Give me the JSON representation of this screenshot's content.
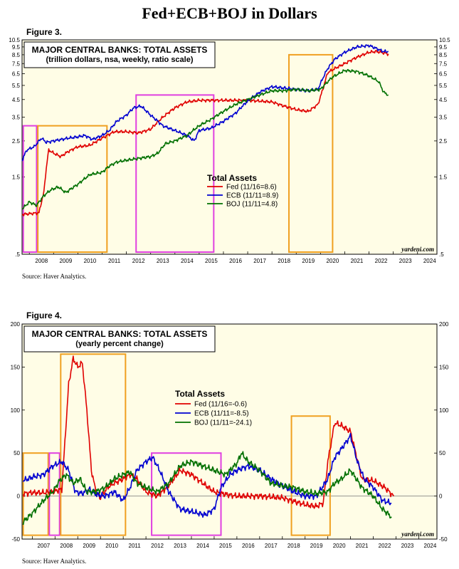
{
  "page": {
    "title": "Fed+ECB+BOJ in Dollars",
    "credit": "yardeni.com"
  },
  "chart_data": [
    {
      "figure_label": "Figure 3.",
      "type": "line",
      "title": "MAJOR CENTRAL BANKS: TOTAL ASSETS",
      "subtitle": "(trillion dollars, nsa, weekly, ratio scale)",
      "scale": "log",
      "ylim": [
        0.5,
        10.5
      ],
      "yticks": [
        ".5",
        "1.5",
        "2.5",
        "3.5",
        "4.5",
        "5.5",
        "6.5",
        "7.5",
        "8.5",
        "9.5",
        "10.5"
      ],
      "ytick_values": [
        0.5,
        1.5,
        2.5,
        3.5,
        4.5,
        5.5,
        6.5,
        7.5,
        8.5,
        9.5,
        10.5
      ],
      "xlim": [
        2007.7,
        2024.8
      ],
      "xticks": [
        "2008",
        "2009",
        "2010",
        "2011",
        "2012",
        "2013",
        "2014",
        "2015",
        "2016",
        "2017",
        "2018",
        "2019",
        "2020",
        "2021",
        "2022",
        "2023",
        "2024"
      ],
      "legend_title": "Total Assets",
      "source": "Source: Haver Analytics.",
      "highlight_boxes": [
        {
          "x0": 2007.75,
          "x1": 2008.3,
          "y0": 0.5,
          "y1": 3.1,
          "color": "#e040e0"
        },
        {
          "x0": 2008.35,
          "x1": 2011.2,
          "y0": 0.5,
          "y1": 3.1,
          "color": "#f0a020"
        },
        {
          "x0": 2012.4,
          "x1": 2015.6,
          "y0": 0.5,
          "y1": 4.8,
          "color": "#e040e0"
        },
        {
          "x0": 2018.7,
          "x1": 2020.5,
          "y0": 0.5,
          "y1": 8.5,
          "color": "#f0a020"
        }
      ],
      "series": [
        {
          "name": "Fed (11/16=8.6)",
          "color": "#e00000",
          "x": [
            2007.7,
            2008.4,
            2008.6,
            2008.8,
            2009.0,
            2009.3,
            2009.6,
            2010.0,
            2010.5,
            2011.0,
            2011.5,
            2012.0,
            2012.5,
            2013.0,
            2013.5,
            2014.0,
            2014.5,
            2015.0,
            2016.0,
            2017.0,
            2018.0,
            2018.5,
            2019.0,
            2019.5,
            2019.9,
            2020.1,
            2020.3,
            2020.6,
            2021.0,
            2021.5,
            2022.0,
            2022.3,
            2022.5,
            2022.8
          ],
          "y": [
            0.88,
            0.9,
            1.2,
            2.2,
            2.1,
            2.0,
            2.15,
            2.3,
            2.35,
            2.6,
            2.85,
            2.85,
            2.8,
            2.95,
            3.5,
            4.0,
            4.35,
            4.45,
            4.45,
            4.45,
            4.35,
            4.1,
            3.9,
            3.8,
            4.2,
            5.2,
            6.6,
            7.0,
            7.5,
            8.2,
            8.8,
            8.9,
            8.8,
            8.6
          ]
        },
        {
          "name": "ECB (11/11=8.9)",
          "color": "#0000d0",
          "x": [
            2007.7,
            2007.9,
            2008.2,
            2008.5,
            2008.7,
            2009.0,
            2009.3,
            2009.6,
            2010.0,
            2010.3,
            2010.6,
            2011.0,
            2011.3,
            2011.6,
            2012.0,
            2012.3,
            2012.6,
            2013.0,
            2013.5,
            2014.0,
            2014.5,
            2014.8,
            2015.0,
            2015.5,
            2016.0,
            2016.5,
            2017.0,
            2017.5,
            2018.0,
            2018.5,
            2019.0,
            2019.5,
            2019.9,
            2020.3,
            2020.6,
            2021.0,
            2021.5,
            2022.0,
            2022.3,
            2022.6,
            2022.8
          ],
          "y": [
            1.9,
            2.2,
            2.3,
            2.6,
            2.45,
            2.5,
            2.55,
            2.6,
            2.65,
            2.7,
            2.55,
            2.7,
            2.9,
            3.3,
            3.6,
            4.0,
            4.1,
            3.6,
            3.1,
            2.9,
            2.7,
            2.5,
            2.9,
            3.0,
            3.3,
            3.7,
            4.4,
            5.0,
            5.4,
            5.3,
            5.2,
            5.1,
            5.2,
            7.0,
            8.0,
            8.8,
            9.5,
            9.7,
            9.3,
            8.9,
            8.9
          ]
        },
        {
          "name": "BOJ (11/11=4.8)",
          "color": "#007000",
          "x": [
            2007.7,
            2008.0,
            2008.3,
            2008.6,
            2008.9,
            2009.2,
            2009.5,
            2010.0,
            2010.5,
            2011.0,
            2011.3,
            2011.6,
            2012.0,
            2012.5,
            2013.0,
            2013.3,
            2013.6,
            2014.0,
            2014.5,
            2015.0,
            2015.5,
            2016.0,
            2016.5,
            2017.0,
            2017.5,
            2018.0,
            2018.5,
            2019.0,
            2019.5,
            2020.0,
            2020.5,
            2021.0,
            2021.5,
            2022.0,
            2022.4,
            2022.6,
            2022.8
          ],
          "y": [
            0.95,
            1.05,
            1.0,
            1.15,
            1.25,
            1.3,
            1.2,
            1.35,
            1.55,
            1.6,
            1.75,
            1.85,
            1.9,
            1.95,
            2.0,
            2.1,
            2.4,
            2.5,
            2.7,
            3.1,
            3.4,
            3.8,
            4.2,
            4.5,
            4.8,
            5.1,
            5.1,
            5.2,
            5.1,
            5.2,
            6.2,
            6.8,
            6.7,
            6.3,
            5.8,
            5.0,
            4.8
          ]
        }
      ]
    },
    {
      "figure_label": "Figure 4.",
      "type": "line",
      "title": "MAJOR CENTRAL BANKS: TOTAL ASSETS",
      "subtitle": "(yearly percent change)",
      "scale": "linear",
      "ylim": [
        -50,
        200
      ],
      "yticks": [
        "-50",
        "0",
        "50",
        "100",
        "150",
        "200"
      ],
      "ytick_values": [
        -50,
        0,
        50,
        100,
        150,
        200
      ],
      "xlim": [
        2006.55,
        2024.8
      ],
      "xticks": [
        "2007",
        "2008",
        "2009",
        "2010",
        "2011",
        "2012",
        "2013",
        "2014",
        "2015",
        "2016",
        "2017",
        "2018",
        "2019",
        "2020",
        "2021",
        "2022",
        "2023",
        "2024"
      ],
      "legend_title": "Total Assets",
      "source": "Source: Haver Analytics.",
      "highlight_boxes": [
        {
          "x0": 2006.6,
          "x1": 2007.7,
          "y0": -48,
          "y1": 50,
          "color": "#f0a020"
        },
        {
          "x0": 2007.75,
          "x1": 2008.2,
          "y0": -48,
          "y1": 50,
          "color": "#e040e0"
        },
        {
          "x0": 2008.25,
          "x1": 2011.1,
          "y0": -48,
          "y1": 165,
          "color": "#f0a020"
        },
        {
          "x0": 2012.25,
          "x1": 2015.3,
          "y0": -48,
          "y1": 50,
          "color": "#e040e0"
        },
        {
          "x0": 2018.4,
          "x1": 2020.1,
          "y0": -48,
          "y1": 93,
          "color": "#f0a020"
        }
      ],
      "series": [
        {
          "name": "Fed (11/16=-0.6)",
          "color": "#e00000",
          "x": [
            2006.6,
            2007.0,
            2007.5,
            2007.9,
            2008.3,
            2008.6,
            2008.8,
            2009.0,
            2009.2,
            2009.4,
            2009.6,
            2009.8,
            2010.0,
            2010.3,
            2010.6,
            2011.0,
            2011.3,
            2011.6,
            2012.0,
            2012.5,
            2013.0,
            2013.5,
            2014.0,
            2014.5,
            2015.0,
            2015.5,
            2016.0,
            2017.0,
            2018.0,
            2018.5,
            2019.0,
            2019.5,
            2019.8,
            2020.0,
            2020.3,
            2020.6,
            2021.0,
            2021.5,
            2022.0,
            2022.5,
            2022.9
          ],
          "y": [
            3,
            4,
            4,
            5,
            8,
            130,
            160,
            150,
            155,
            100,
            30,
            5,
            -2,
            10,
            15,
            20,
            25,
            20,
            5,
            0,
            12,
            30,
            25,
            15,
            5,
            2,
            0,
            0,
            -2,
            -6,
            -10,
            -12,
            -8,
            40,
            85,
            82,
            75,
            20,
            18,
            10,
            0
          ]
        },
        {
          "name": "ECB (11/11=-8.5)",
          "color": "#0000d0",
          "x": [
            2006.6,
            2007.0,
            2007.5,
            2007.9,
            2008.3,
            2008.6,
            2008.9,
            2009.2,
            2009.5,
            2009.8,
            2010.2,
            2010.6,
            2011.0,
            2011.3,
            2011.6,
            2012.0,
            2012.3,
            2012.6,
            2013.0,
            2013.5,
            2014.0,
            2014.3,
            2014.6,
            2015.0,
            2015.3,
            2015.7,
            2016.0,
            2016.5,
            2017.0,
            2017.5,
            2018.0,
            2018.5,
            2019.0,
            2019.5,
            2020.0,
            2020.3,
            2020.6,
            2021.0,
            2021.3,
            2021.6,
            2022.0,
            2022.4,
            2022.8
          ],
          "y": [
            18,
            22,
            25,
            35,
            40,
            30,
            5,
            3,
            8,
            2,
            0,
            5,
            -5,
            10,
            30,
            40,
            45,
            30,
            5,
            -15,
            -18,
            -20,
            -22,
            -15,
            10,
            25,
            30,
            35,
            30,
            20,
            12,
            5,
            0,
            0,
            20,
            45,
            55,
            70,
            40,
            20,
            10,
            -5,
            -8.5
          ]
        },
        {
          "name": "BOJ (11/11=-24.1)",
          "color": "#007000",
          "x": [
            2006.6,
            2007.0,
            2007.5,
            2007.9,
            2008.2,
            2008.5,
            2008.8,
            2009.1,
            2009.4,
            2009.8,
            2010.2,
            2010.6,
            2011.0,
            2011.3,
            2011.6,
            2012.0,
            2012.5,
            2013.0,
            2013.5,
            2013.8,
            2014.0,
            2014.5,
            2015.0,
            2015.5,
            2016.0,
            2016.2,
            2016.5,
            2017.0,
            2017.5,
            2018.0,
            2018.5,
            2019.0,
            2019.5,
            2020.0,
            2020.3,
            2020.6,
            2021.0,
            2021.5,
            2022.0,
            2022.4,
            2022.8
          ],
          "y": [
            -30,
            -20,
            -5,
            5,
            18,
            25,
            15,
            20,
            5,
            5,
            10,
            20,
            25,
            28,
            15,
            10,
            5,
            15,
            35,
            38,
            40,
            35,
            30,
            25,
            38,
            50,
            40,
            30,
            15,
            12,
            10,
            5,
            3,
            5,
            15,
            20,
            30,
            10,
            0,
            -15,
            -24.1
          ]
        }
      ]
    }
  ]
}
